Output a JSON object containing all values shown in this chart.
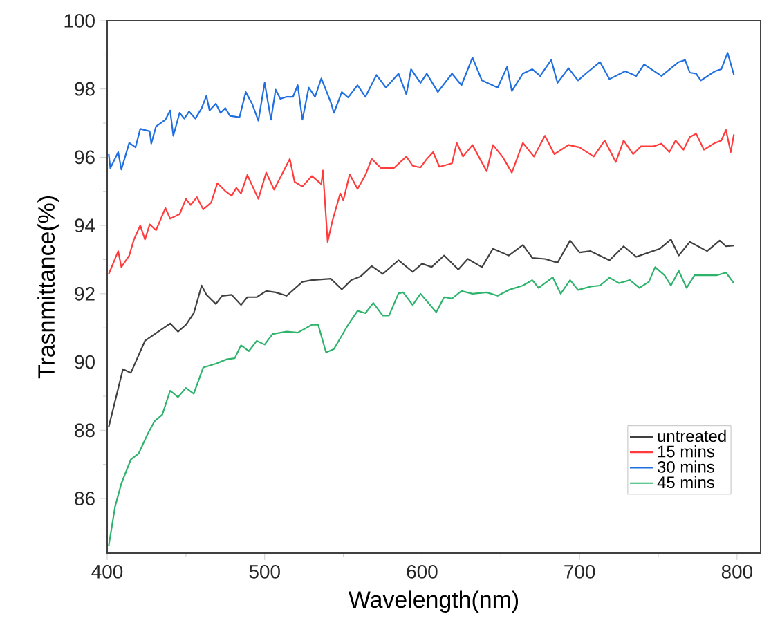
{
  "chart_data": {
    "type": "line",
    "xlabel": "Wavelength(nm)",
    "ylabel": "Trasnmittance(%)",
    "xlim": [
      400,
      815
    ],
    "ylim": [
      84.4,
      100
    ],
    "xticks": [
      400,
      500,
      600,
      700,
      800
    ],
    "yticks": [
      86,
      88,
      90,
      92,
      94,
      96,
      98,
      100
    ],
    "legend": "bottom right",
    "series": [
      {
        "name": "untreated",
        "color": "#404040",
        "x": [
          401,
          410,
          415,
          424,
          440,
          445,
          450,
          455,
          460,
          463,
          469,
          473,
          479,
          485,
          489,
          495,
          501,
          507,
          514,
          524,
          530,
          542,
          549,
          555,
          561,
          568,
          575,
          585,
          594,
          600,
          606,
          614,
          623,
          629,
          638,
          645,
          655,
          664,
          670,
          678,
          686,
          694,
          700,
          707,
          719,
          728,
          736,
          744,
          751,
          758,
          763,
          770,
          781,
          789,
          793,
          798
        ],
        "values": [
          88.1,
          89.79,
          89.68,
          90.62,
          91.13,
          90.89,
          91.09,
          91.43,
          92.24,
          91.97,
          91.7,
          91.94,
          91.97,
          91.67,
          91.9,
          91.9,
          92.08,
          92.04,
          91.94,
          92.35,
          92.4,
          92.44,
          92.13,
          92.4,
          92.51,
          92.81,
          92.58,
          92.98,
          92.64,
          92.88,
          92.78,
          93.12,
          92.71,
          93.02,
          92.78,
          93.32,
          93.12,
          93.43,
          93.05,
          93.02,
          92.91,
          93.56,
          93.21,
          93.25,
          92.98,
          93.39,
          93.08,
          93.21,
          93.32,
          93.59,
          93.12,
          93.52,
          93.25,
          93.56,
          93.39,
          93.41
        ]
      },
      {
        "name": "15 mins",
        "color": "#ff3b3b",
        "x": [
          401,
          404,
          407,
          409,
          414,
          417,
          421,
          424,
          427,
          431,
          437,
          440,
          446,
          450,
          453,
          457,
          461,
          466,
          470,
          475,
          479,
          482,
          485,
          489,
          496,
          501,
          506,
          510,
          516,
          519,
          524,
          530,
          536,
          537,
          540,
          543,
          548,
          550,
          554,
          559,
          564,
          568,
          574,
          582,
          590,
          594,
          599,
          603,
          607,
          611,
          619,
          622,
          626,
          632,
          641,
          645,
          651,
          657,
          664,
          671,
          678,
          684,
          693,
          700,
          709,
          716,
          723,
          728,
          734,
          739,
          747,
          752,
          757,
          761,
          766,
          770,
          774,
          779,
          786,
          790,
          793,
          796,
          798
        ],
        "values": [
          92.58,
          92.91,
          93.25,
          92.78,
          93.12,
          93.59,
          94.0,
          93.59,
          94.03,
          93.86,
          94.51,
          94.2,
          94.33,
          94.78,
          94.6,
          94.83,
          94.47,
          94.67,
          95.24,
          95.01,
          94.87,
          95.1,
          94.94,
          95.48,
          94.78,
          95.55,
          95.05,
          95.41,
          95.95,
          95.28,
          95.14,
          95.45,
          95.21,
          95.61,
          93.52,
          94.13,
          94.94,
          94.74,
          95.5,
          95.07,
          95.48,
          95.95,
          95.68,
          95.68,
          96.02,
          95.75,
          95.7,
          95.95,
          96.15,
          95.72,
          95.82,
          96.42,
          96.02,
          96.36,
          95.59,
          96.36,
          96.02,
          95.55,
          96.42,
          96.02,
          96.63,
          96.09,
          96.36,
          96.29,
          96.02,
          96.49,
          95.86,
          96.49,
          96.09,
          96.32,
          96.32,
          96.4,
          96.15,
          96.49,
          96.22,
          96.59,
          96.69,
          96.22,
          96.42,
          96.49,
          96.8,
          96.15,
          96.67
        ]
      },
      {
        "name": "30 mins",
        "color": "#1f6fe0",
        "x": [
          401,
          402,
          407,
          409,
          414,
          418,
          421,
          427,
          428,
          431,
          437,
          440,
          442,
          446,
          449,
          452,
          456,
          460,
          463,
          465,
          469,
          472,
          475,
          478,
          484,
          488,
          492,
          496,
          500,
          504,
          507,
          510,
          514,
          518,
          521,
          524,
          528,
          532,
          536,
          542,
          544,
          549,
          553,
          559,
          564,
          571,
          577,
          585,
          590,
          593,
          599,
          603,
          610,
          619,
          625,
          632,
          638,
          648,
          654,
          657,
          664,
          670,
          675,
          682,
          686,
          693,
          699,
          704,
          713,
          719,
          729,
          736,
          741,
          752,
          763,
          767,
          770,
          774,
          777,
          786,
          790,
          794,
          798
        ],
        "values": [
          96.09,
          95.68,
          96.15,
          95.64,
          96.42,
          96.29,
          96.83,
          96.76,
          96.4,
          96.9,
          97.1,
          97.37,
          96.63,
          97.3,
          97.13,
          97.34,
          97.13,
          97.44,
          97.8,
          97.37,
          97.57,
          97.3,
          97.44,
          97.21,
          97.17,
          97.91,
          97.57,
          97.07,
          98.18,
          97.1,
          97.98,
          97.71,
          97.77,
          97.77,
          98.11,
          97.1,
          98.04,
          97.77,
          98.31,
          97.61,
          97.3,
          97.91,
          97.75,
          98.11,
          97.77,
          98.41,
          98.04,
          98.45,
          97.84,
          98.58,
          98.18,
          98.45,
          97.91,
          98.45,
          98.11,
          98.92,
          98.25,
          98.04,
          98.65,
          97.94,
          98.45,
          98.58,
          98.38,
          98.85,
          98.18,
          98.61,
          98.25,
          98.45,
          98.79,
          98.29,
          98.52,
          98.38,
          98.72,
          98.38,
          98.79,
          98.85,
          98.48,
          98.45,
          98.25,
          98.52,
          98.58,
          99.06,
          98.42
        ]
      },
      {
        "name": "45 mins",
        "color": "#2db36b",
        "x": [
          401,
          405,
          409,
          415,
          420,
          426,
          430,
          435,
          440,
          445,
          450,
          455,
          461,
          469,
          476,
          481,
          485,
          490,
          495,
          500,
          505,
          514,
          521,
          530,
          534,
          539,
          544,
          553,
          559,
          564,
          569,
          575,
          579,
          585,
          588,
          594,
          599,
          609,
          614,
          619,
          625,
          632,
          641,
          648,
          655,
          664,
          670,
          674,
          683,
          688,
          694,
          699,
          707,
          713,
          719,
          725,
          732,
          738,
          744,
          748,
          754,
          758,
          763,
          768,
          773,
          787,
          793,
          798
        ],
        "values": [
          84.62,
          85.76,
          86.44,
          87.14,
          87.32,
          87.92,
          88.26,
          88.46,
          89.16,
          88.97,
          89.24,
          89.07,
          89.84,
          89.95,
          90.08,
          90.11,
          90.49,
          90.32,
          90.62,
          90.51,
          90.82,
          90.89,
          90.86,
          91.09,
          91.09,
          90.28,
          90.38,
          91.09,
          91.5,
          91.43,
          91.73,
          91.36,
          91.36,
          92.01,
          92.04,
          91.67,
          92.0,
          91.46,
          91.9,
          91.86,
          92.08,
          92.0,
          92.04,
          91.94,
          92.11,
          92.24,
          92.4,
          92.17,
          92.48,
          92.0,
          92.4,
          92.11,
          92.21,
          92.24,
          92.47,
          92.31,
          92.4,
          92.17,
          92.35,
          92.78,
          92.54,
          92.24,
          92.67,
          92.17,
          92.54,
          92.54,
          92.62,
          92.31
        ]
      }
    ]
  }
}
